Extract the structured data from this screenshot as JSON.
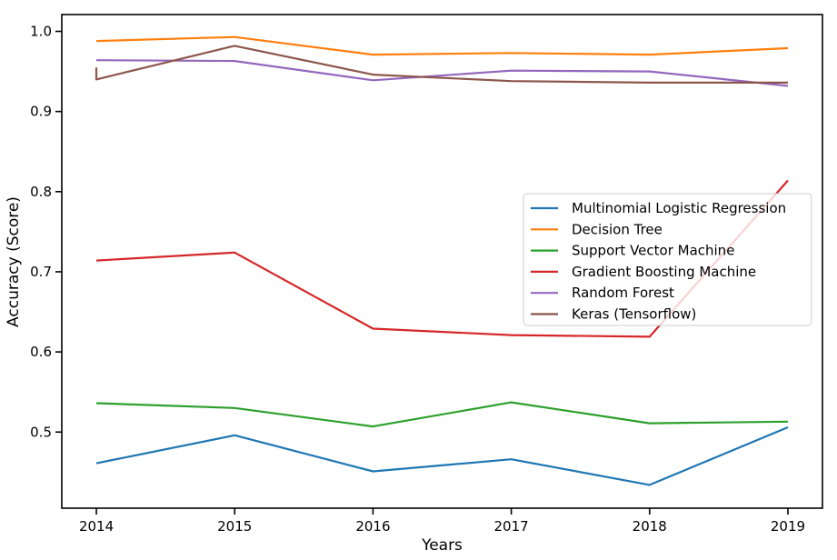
{
  "chart_data": {
    "type": "line",
    "title": "",
    "xlabel": "Years",
    "ylabel": "Accuracy (Score)",
    "x": [
      2014,
      2015,
      2016,
      2017,
      2018,
      2019
    ],
    "x_ticks": [
      "2014",
      "2015",
      "2016",
      "2017",
      "2018",
      "2019"
    ],
    "y_ticks": [
      "0.5",
      "0.6",
      "0.7",
      "0.8",
      "0.9",
      "1.0"
    ],
    "xlim": [
      2013.75,
      2019.25
    ],
    "ylim": [
      0.405,
      1.021
    ],
    "grid": false,
    "legend_position": "center-right",
    "series": [
      {
        "name": "Multinomial Logistic Regression",
        "color": "#1f77b4",
        "values": [
          0.461,
          0.496,
          0.451,
          0.466,
          0.434,
          0.506
        ]
      },
      {
        "name": "Decision Tree",
        "color": "#ff7f0e",
        "values": [
          0.988,
          0.993,
          0.971,
          0.973,
          0.971,
          0.979
        ]
      },
      {
        "name": "Support Vector Machine",
        "color": "#2ca02c",
        "values": [
          0.536,
          0.53,
          0.507,
          0.537,
          0.511,
          0.513
        ]
      },
      {
        "name": "Gradient Boosting Machine",
        "color": "#d62728",
        "values": [
          0.714,
          0.724,
          0.629,
          0.621,
          0.619,
          0.814
        ]
      },
      {
        "name": "Random Forest",
        "color": "#9467bd",
        "values": [
          0.964,
          0.963,
          0.939,
          0.951,
          0.95,
          0.932
        ]
      },
      {
        "name": "Keras (Tensorflow)",
        "color": "#8c564b",
        "points": [
          [
            2014,
            0.955
          ],
          [
            2014,
            0.94
          ],
          [
            2015,
            0.982
          ],
          [
            2016,
            0.946
          ],
          [
            2017,
            0.938
          ],
          [
            2018,
            0.936
          ],
          [
            2019,
            0.936
          ]
        ]
      }
    ]
  }
}
